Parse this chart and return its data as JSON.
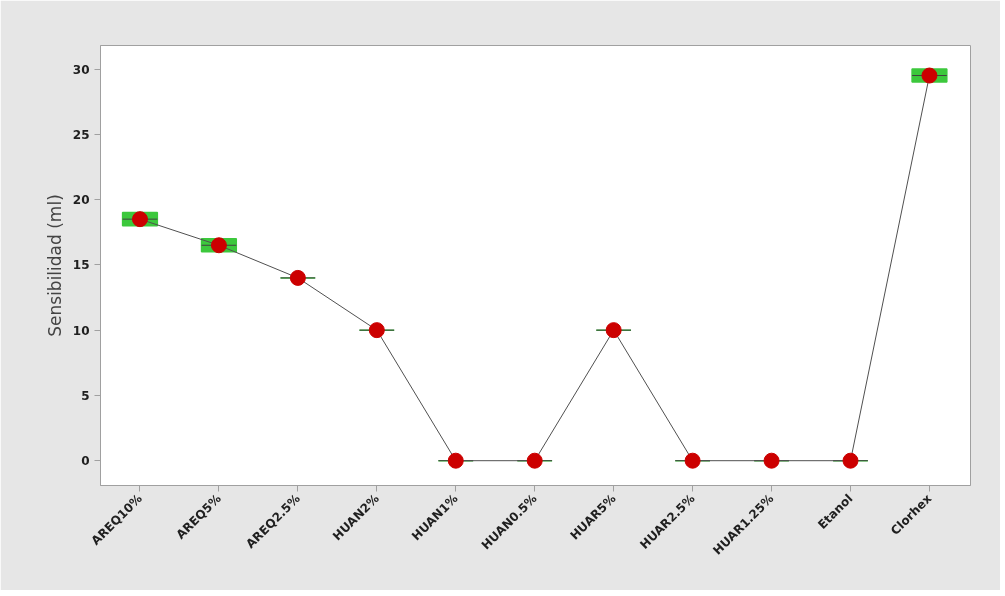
{
  "chart_data": {
    "type": "box",
    "ylabel": "Sensibilidad (ml)",
    "categories": [
      "AREQ10%",
      "AREQ5%",
      "AREQ2.5%",
      "HUAN2%",
      "HUAN1%",
      "HUAN0.5%",
      "HUAR5%",
      "HUAR2.5%",
      "HUAR1.25%",
      "Etanol",
      "Clorhex"
    ],
    "ylim": [
      -1.9,
      31.8
    ],
    "yticks": [
      0,
      5,
      10,
      15,
      20,
      25,
      30
    ],
    "grid": false,
    "series": [
      {
        "type": "box",
        "color": "#3cc83c",
        "boxes": [
          {
            "low": 18,
            "q1": 18,
            "median": 18.5,
            "q3": 19,
            "high": 19
          },
          {
            "low": 16,
            "q1": 16,
            "median": 16.5,
            "q3": 17,
            "high": 17
          },
          {
            "low": 14,
            "q1": 14,
            "median": 14,
            "q3": 14,
            "high": 14
          },
          {
            "low": 10,
            "q1": 10,
            "median": 10,
            "q3": 10,
            "high": 10
          },
          {
            "low": 0,
            "q1": 0,
            "median": 0,
            "q3": 0,
            "high": 0
          },
          {
            "low": 0,
            "q1": 0,
            "median": 0,
            "q3": 0,
            "high": 0
          },
          {
            "low": 10,
            "q1": 10,
            "median": 10,
            "q3": 10,
            "high": 10
          },
          {
            "low": 0,
            "q1": 0,
            "median": 0,
            "q3": 0,
            "high": 0
          },
          {
            "low": 0,
            "q1": 0,
            "median": 0,
            "q3": 0,
            "high": 0
          },
          {
            "low": 0,
            "q1": 0,
            "median": 0,
            "q3": 0,
            "high": 0
          },
          {
            "low": 29,
            "q1": 29,
            "median": 29.5,
            "q3": 30,
            "high": 30
          }
        ]
      },
      {
        "type": "line",
        "color": "#cc0000",
        "marker": "circle",
        "values": [
          18.5,
          16.5,
          14,
          10,
          0,
          0,
          10,
          0,
          0,
          0,
          29.5
        ]
      }
    ]
  }
}
